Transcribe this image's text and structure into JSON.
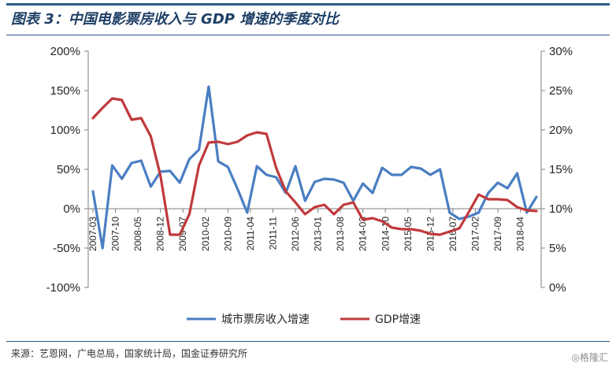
{
  "figure": {
    "title": "图表 3：中国电影票房收入与 GDP 增速的季度对比",
    "source": "来源：艺恩网，广电总局，国家统计局，国金证券研究所",
    "watermark": "◎格隆汇"
  },
  "chart_data": {
    "type": "line",
    "title": "",
    "xlabel": "",
    "ylabel": "",
    "grid": false,
    "legend_position": "bottom",
    "x_tick_labels": [
      "2007-03",
      "2007-10",
      "2008-05",
      "2008-12",
      "2009-07",
      "2010-02",
      "2010-09",
      "2011-04",
      "2011-11",
      "2012-06",
      "2013-01",
      "2013-08",
      "2014-03",
      "2014-10",
      "2015-05",
      "2015-12",
      "2016-07",
      "2017-02",
      "2017-09",
      "2018-04"
    ],
    "y_left": {
      "ticks": [
        "200%",
        "150%",
        "100%",
        "50%",
        "0%",
        "-50%",
        "-100%"
      ],
      "ylim": [
        -100,
        200
      ]
    },
    "y_right": {
      "ticks": [
        "30%",
        "25%",
        "20%",
        "15%",
        "10%",
        "5%",
        "0%"
      ],
      "ylim": [
        0,
        30
      ]
    },
    "series": [
      {
        "name": "城市票房收入增速",
        "axis": "left",
        "color": "#4a7ec2",
        "x": [
          "2007-03",
          "2007-06",
          "2007-09",
          "2007-12",
          "2008-03",
          "2008-06",
          "2008-09",
          "2008-12",
          "2009-03",
          "2009-06",
          "2009-09",
          "2009-12",
          "2010-03",
          "2010-06",
          "2010-09",
          "2010-12",
          "2011-03",
          "2011-06",
          "2011-09",
          "2011-12",
          "2012-03",
          "2012-06",
          "2012-09",
          "2012-12",
          "2013-03",
          "2013-06",
          "2013-09",
          "2013-12",
          "2014-03",
          "2014-06",
          "2014-09",
          "2014-12",
          "2015-03",
          "2015-06",
          "2015-09",
          "2015-12",
          "2016-03",
          "2016-06",
          "2016-09",
          "2016-12",
          "2017-03",
          "2017-06",
          "2017-09",
          "2017-12",
          "2018-03",
          "2018-06",
          "2018-09"
        ],
        "values": [
          22,
          -50,
          55,
          38,
          58,
          61,
          28,
          47,
          48,
          33,
          63,
          75,
          155,
          60,
          53,
          25,
          -5,
          54,
          43,
          40,
          20,
          54,
          10,
          34,
          38,
          37,
          33,
          10,
          32,
          20,
          52,
          43,
          43,
          53,
          51,
          43,
          50,
          -5,
          -13,
          -10,
          -5,
          20,
          33,
          26,
          45,
          -5,
          15
        ]
      },
      {
        "name": "GDP增速",
        "axis": "right",
        "color": "#c0393b",
        "x": [
          "2007-03",
          "2007-06",
          "2007-09",
          "2007-12",
          "2008-03",
          "2008-06",
          "2008-09",
          "2008-12",
          "2009-03",
          "2009-06",
          "2009-09",
          "2009-12",
          "2010-03",
          "2010-06",
          "2010-09",
          "2010-12",
          "2011-03",
          "2011-06",
          "2011-09",
          "2011-12",
          "2012-03",
          "2012-06",
          "2012-09",
          "2012-12",
          "2013-03",
          "2013-06",
          "2013-09",
          "2013-12",
          "2014-03",
          "2014-06",
          "2014-09",
          "2014-12",
          "2015-03",
          "2015-06",
          "2015-09",
          "2015-12",
          "2016-03",
          "2016-06",
          "2016-09",
          "2016-12",
          "2017-03",
          "2017-06",
          "2017-09",
          "2017-12",
          "2018-03",
          "2018-06",
          "2018-09"
        ],
        "values": [
          21.5,
          22.8,
          24,
          23.8,
          21.3,
          21.5,
          19.2,
          14.2,
          6.7,
          6.7,
          9.3,
          15.5,
          18.4,
          18.5,
          18.2,
          18.5,
          19.3,
          19.7,
          19.5,
          15.2,
          12.2,
          10.8,
          9.3,
          10.2,
          10.5,
          9.3,
          10.5,
          10.8,
          8.6,
          8.8,
          8.4,
          7.6,
          7.4,
          7.4,
          7.2,
          6.8,
          6.7,
          7.1,
          7.5,
          9.6,
          11.8,
          11.2,
          11.2,
          11.1,
          10.2,
          9.8,
          9.7
        ]
      }
    ]
  }
}
